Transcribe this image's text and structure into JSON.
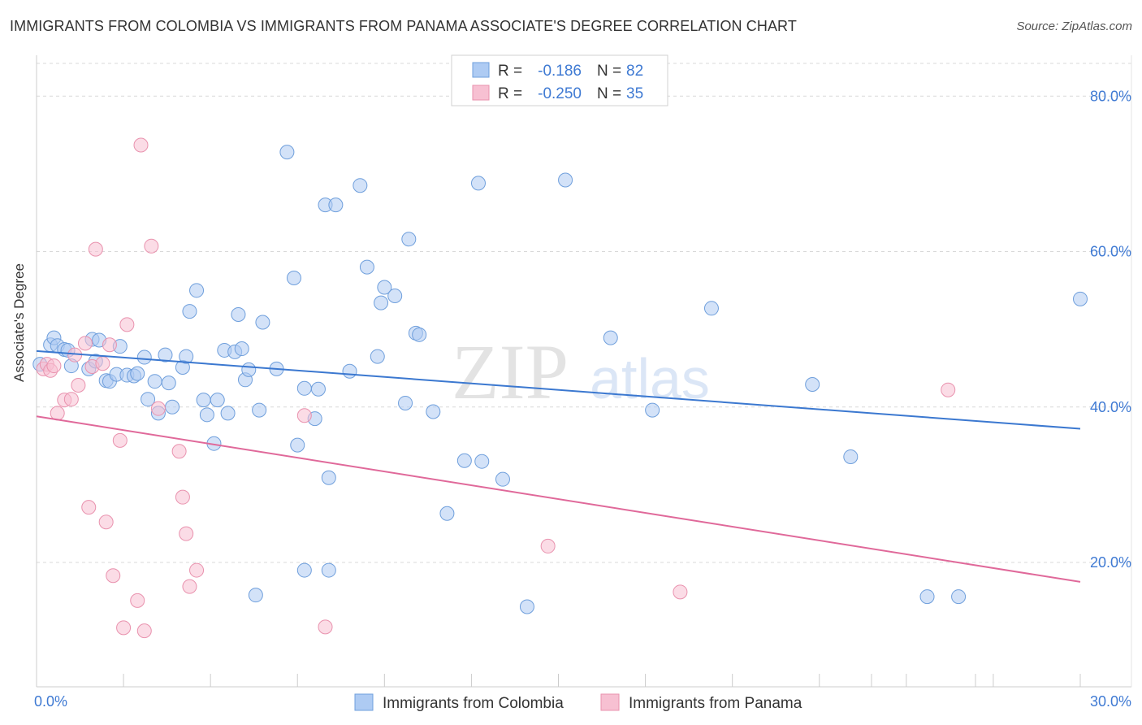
{
  "title": "IMMIGRANTS FROM COLOMBIA VS IMMIGRANTS FROM PANAMA ASSOCIATE'S DEGREE CORRELATION CHART",
  "source": "Source: ZipAtlas.com",
  "watermark": {
    "zip": "ZIP",
    "atlas": "atlas"
  },
  "colors": {
    "blue_fill": "#aecbf3",
    "blue_stroke": "#6f9fdc",
    "blue_line": "#3b78d0",
    "pink_fill": "#f7c0d2",
    "pink_stroke": "#e992ae",
    "pink_line": "#e0699a",
    "tick_label": "#3f7ad3",
    "grid": "#d9d9d9"
  },
  "chart_data": {
    "type": "scatter",
    "xlabel": "",
    "ylabel": "Associate's Degree",
    "xlim": [
      0,
      30
    ],
    "ylim": [
      4,
      84
    ],
    "x_tick_labels": {
      "left": "0.0%",
      "right": "30.0%"
    },
    "y_ticks": [
      {
        "value": 20,
        "label": "20.0%"
      },
      {
        "value": 40,
        "label": "40.0%"
      },
      {
        "value": 60,
        "label": "60.0%"
      },
      {
        "value": 80,
        "label": "80.0%"
      }
    ],
    "legend": [
      {
        "swatch": "blue",
        "r_label": "R =",
        "r_value": "-0.186",
        "n_label": "N =",
        "n_value": "82"
      },
      {
        "swatch": "pink",
        "r_label": "R =",
        "r_value": "-0.250",
        "n_label": "N =",
        "n_value": "35"
      }
    ],
    "series": [
      {
        "name": "Immigrants from Colombia",
        "color": "blue",
        "trend": {
          "x0": 0,
          "y0": 47.2,
          "x1": 30,
          "y1": 37.2
        },
        "points": [
          [
            0.1,
            45.5
          ],
          [
            0.4,
            48.0
          ],
          [
            0.5,
            48.9
          ],
          [
            0.6,
            47.9
          ],
          [
            0.8,
            47.4
          ],
          [
            0.9,
            47.3
          ],
          [
            1.0,
            45.3
          ],
          [
            1.5,
            44.9
          ],
          [
            1.6,
            48.7
          ],
          [
            1.7,
            45.9
          ],
          [
            1.8,
            48.6
          ],
          [
            2.0,
            43.4
          ],
          [
            2.1,
            43.3
          ],
          [
            2.3,
            44.2
          ],
          [
            2.4,
            47.8
          ],
          [
            2.6,
            44.1
          ],
          [
            2.8,
            44.0
          ],
          [
            2.9,
            44.3
          ],
          [
            3.1,
            46.4
          ],
          [
            3.2,
            41.0
          ],
          [
            3.4,
            43.3
          ],
          [
            3.5,
            39.2
          ],
          [
            3.7,
            46.7
          ],
          [
            3.8,
            43.1
          ],
          [
            3.9,
            40.0
          ],
          [
            4.2,
            45.1
          ],
          [
            4.3,
            46.5
          ],
          [
            4.4,
            52.3
          ],
          [
            4.6,
            55.0
          ],
          [
            4.8,
            40.9
          ],
          [
            4.9,
            39.0
          ],
          [
            5.1,
            35.3
          ],
          [
            5.2,
            40.9
          ],
          [
            5.4,
            47.3
          ],
          [
            5.5,
            39.2
          ],
          [
            5.7,
            47.1
          ],
          [
            5.8,
            51.9
          ],
          [
            5.9,
            47.5
          ],
          [
            6.0,
            43.5
          ],
          [
            6.1,
            44.8
          ],
          [
            6.4,
            39.6
          ],
          [
            6.5,
            50.9
          ],
          [
            6.9,
            44.9
          ],
          [
            7.2,
            72.8
          ],
          [
            7.4,
            56.6
          ],
          [
            7.5,
            35.1
          ],
          [
            7.7,
            42.4
          ],
          [
            8.0,
            38.5
          ],
          [
            8.1,
            42.3
          ],
          [
            8.3,
            66.0
          ],
          [
            8.4,
            30.9
          ],
          [
            8.6,
            66.0
          ],
          [
            9.0,
            44.6
          ],
          [
            9.3,
            68.5
          ],
          [
            9.5,
            58.0
          ],
          [
            9.8,
            46.5
          ],
          [
            9.9,
            53.4
          ],
          [
            10.0,
            55.4
          ],
          [
            10.3,
            54.3
          ],
          [
            10.6,
            40.5
          ],
          [
            10.7,
            61.6
          ],
          [
            10.9,
            49.5
          ],
          [
            11.0,
            49.3
          ],
          [
            11.4,
            39.4
          ],
          [
            11.8,
            26.3
          ],
          [
            12.3,
            33.1
          ],
          [
            12.7,
            68.8
          ],
          [
            12.8,
            33.0
          ],
          [
            13.4,
            30.7
          ],
          [
            14.1,
            14.3
          ],
          [
            15.2,
            69.2
          ],
          [
            16.5,
            48.9
          ],
          [
            17.7,
            39.6
          ],
          [
            19.4,
            52.7
          ],
          [
            22.3,
            42.9
          ],
          [
            23.4,
            33.6
          ],
          [
            25.6,
            15.6
          ],
          [
            26.5,
            15.6
          ],
          [
            30.0,
            53.9
          ],
          [
            6.3,
            15.8
          ],
          [
            7.7,
            19.0
          ],
          [
            8.4,
            19.0
          ]
        ]
      },
      {
        "name": "Immigrants from Panama",
        "color": "pink",
        "trend": {
          "x0": 0,
          "y0": 38.8,
          "x1": 30,
          "y1": 17.5
        },
        "points": [
          [
            0.2,
            44.9
          ],
          [
            0.3,
            45.5
          ],
          [
            0.4,
            44.7
          ],
          [
            0.5,
            45.3
          ],
          [
            0.6,
            39.2
          ],
          [
            0.8,
            40.9
          ],
          [
            1.0,
            41.0
          ],
          [
            1.1,
            46.7
          ],
          [
            1.2,
            42.8
          ],
          [
            1.4,
            48.2
          ],
          [
            1.5,
            27.1
          ],
          [
            1.6,
            45.2
          ],
          [
            1.7,
            60.3
          ],
          [
            1.9,
            45.6
          ],
          [
            2.0,
            25.2
          ],
          [
            2.1,
            48.0
          ],
          [
            2.2,
            18.3
          ],
          [
            2.4,
            35.7
          ],
          [
            2.5,
            11.6
          ],
          [
            2.6,
            50.6
          ],
          [
            2.9,
            15.1
          ],
          [
            3.0,
            73.7
          ],
          [
            3.1,
            11.2
          ],
          [
            3.3,
            60.7
          ],
          [
            3.5,
            39.8
          ],
          [
            4.1,
            34.3
          ],
          [
            4.2,
            28.4
          ],
          [
            4.3,
            23.7
          ],
          [
            4.4,
            16.9
          ],
          [
            4.6,
            19.0
          ],
          [
            7.7,
            38.9
          ],
          [
            8.3,
            11.7
          ],
          [
            14.7,
            22.1
          ],
          [
            18.5,
            16.2
          ],
          [
            26.2,
            42.2
          ]
        ]
      }
    ]
  },
  "bottom_legend": [
    {
      "swatch": "blue",
      "label": "Immigrants from Colombia"
    },
    {
      "swatch": "pink",
      "label": "Immigrants from Panama"
    }
  ]
}
